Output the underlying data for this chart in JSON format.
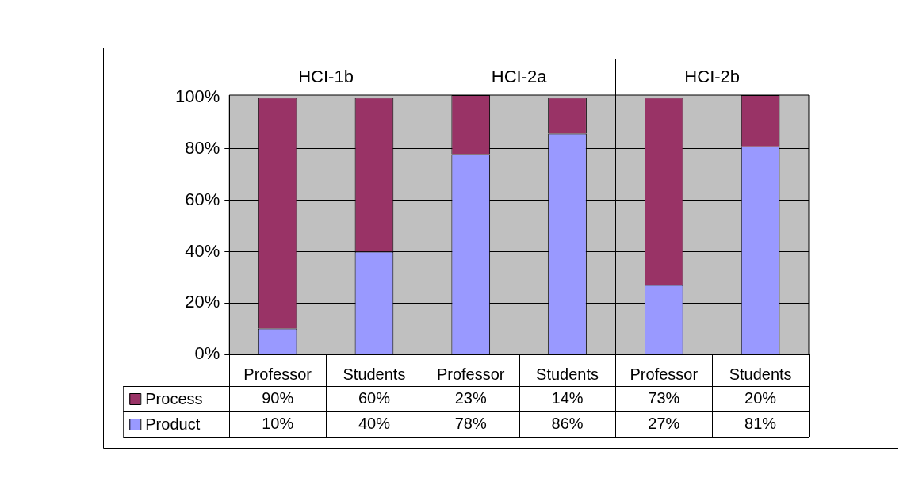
{
  "chart_data": {
    "type": "bar",
    "stacked": true,
    "categories": [
      "Professor",
      "Students",
      "Professor",
      "Students",
      "Professor",
      "Students"
    ],
    "series": [
      {
        "name": "Product",
        "color": "#9999ff",
        "values": [
          10,
          40,
          78,
          86,
          27,
          81
        ],
        "value_labels": [
          "10%",
          "40%",
          "78%",
          "86%",
          "27%",
          "81%"
        ]
      },
      {
        "name": "Process",
        "color": "#993366",
        "values": [
          90,
          60,
          23,
          14,
          73,
          20
        ],
        "value_labels": [
          "90%",
          "60%",
          "23%",
          "14%",
          "73%",
          "20%"
        ]
      }
    ],
    "ylim": [
      0,
      101
    ],
    "yticks": [
      {
        "value": 0,
        "label": "0%"
      },
      {
        "value": 20,
        "label": "20%"
      },
      {
        "value": 40,
        "label": "40%"
      },
      {
        "value": 60,
        "label": "60%"
      },
      {
        "value": 80,
        "label": "80%"
      },
      {
        "value": 100,
        "label": "100%"
      }
    ],
    "grid": "y",
    "legend": "bottom left",
    "annotations": [
      "HCI-1b",
      "HCI-2a",
      "HCI-2b"
    ]
  }
}
